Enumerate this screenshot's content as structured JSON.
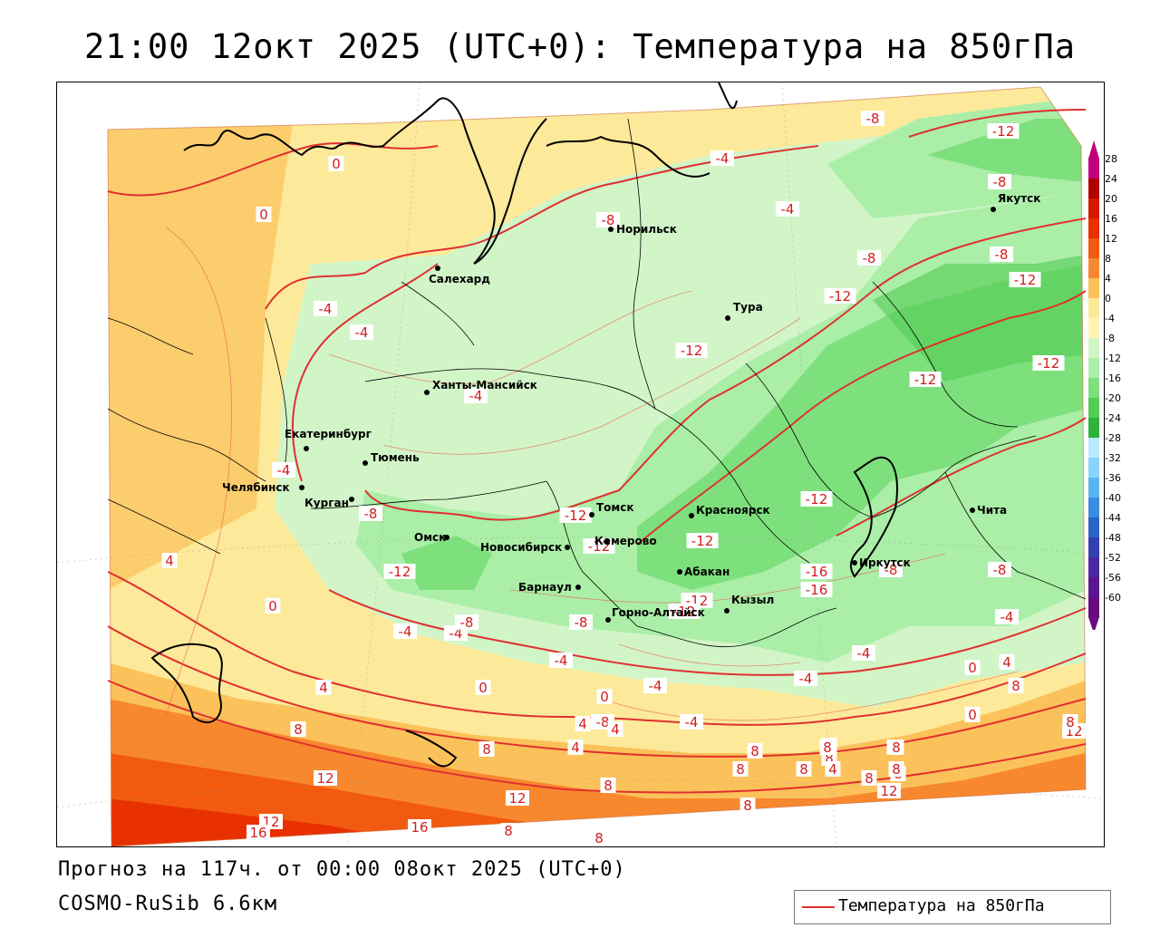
{
  "header": {
    "title": "21:00 12окт 2025 (UTC+0): Температура на 850гПа"
  },
  "footer": {
    "forecast": "Прогноз на 117ч. от 00:00 08окт 2025 (UTC+0)",
    "model": "COSMO-RuSib 6.6км"
  },
  "legend": {
    "label": "Температура на 850гПа",
    "line_color": "#e03030"
  },
  "colorbar": {
    "ticks": [
      "28",
      "24",
      "20",
      "16",
      "12",
      "8",
      "4",
      "0",
      "-4",
      "-8",
      "-12",
      "-16",
      "-20",
      "-24",
      "-28",
      "-32",
      "-36",
      "-40",
      "-44",
      "-48",
      "-52",
      "-56",
      "-60"
    ],
    "colors": [
      "#c0007a",
      "#b00000",
      "#d41a00",
      "#e83000",
      "#f25a10",
      "#f8882e",
      "#fbc15a",
      "#fde99a",
      "#fff4b8",
      "#d2f5c8",
      "#aaeea8",
      "#7ee07c",
      "#52cc54",
      "#30b23a",
      "#b8eaff",
      "#88d4fb",
      "#5ab4f0",
      "#3a8ce0",
      "#2a64c8",
      "#3440b0",
      "#4a2aa0",
      "#5a1890",
      "#6a0c80"
    ]
  },
  "cities": [
    {
      "name": "Норильск"
    },
    {
      "name": "Якутск"
    },
    {
      "name": "Салехард"
    },
    {
      "name": "Тура"
    },
    {
      "name": "Ханты-Мансийск"
    },
    {
      "name": "Екатеринбург"
    },
    {
      "name": "Тюмень"
    },
    {
      "name": "Челябинск"
    },
    {
      "name": "Курган"
    },
    {
      "name": "Омск"
    },
    {
      "name": "Новосибирск"
    },
    {
      "name": "Томск"
    },
    {
      "name": "Кемерово"
    },
    {
      "name": "Красноярск"
    },
    {
      "name": "Абакан"
    },
    {
      "name": "Барнаул"
    },
    {
      "name": "Горно-Алтайск"
    },
    {
      "name": "Кызыл"
    },
    {
      "name": "Иркутск"
    },
    {
      "name": "Чита"
    }
  ],
  "contour_labels": [
    "0",
    "0",
    "-4",
    "-4",
    "-4",
    "-4",
    "-8",
    "-8",
    "-8",
    "-8",
    "-12",
    "-12",
    "-12",
    "-12",
    "-12",
    "-12",
    "-12",
    "-12",
    "-12",
    "-4",
    "-4",
    "-8",
    "-4",
    "-8",
    "-12",
    "-8",
    "-12",
    "-12",
    "-16",
    "-16",
    "-12",
    "-8",
    "-8",
    "-8",
    "-4",
    "-4",
    "-4",
    "-4",
    "-4",
    "4",
    "0",
    "4",
    "0",
    "0",
    "0",
    "4",
    "8",
    "4",
    "8",
    "8",
    "12",
    "12",
    "16",
    "16",
    "8",
    "8",
    "8",
    "12",
    "8",
    "8",
    "8",
    "8",
    "4",
    "12",
    "12",
    "8",
    "4",
    "8",
    "8",
    "8",
    "4",
    "8",
    "8",
    "-4",
    "0",
    "-8",
    "-4",
    "4",
    "8",
    "8"
  ]
}
